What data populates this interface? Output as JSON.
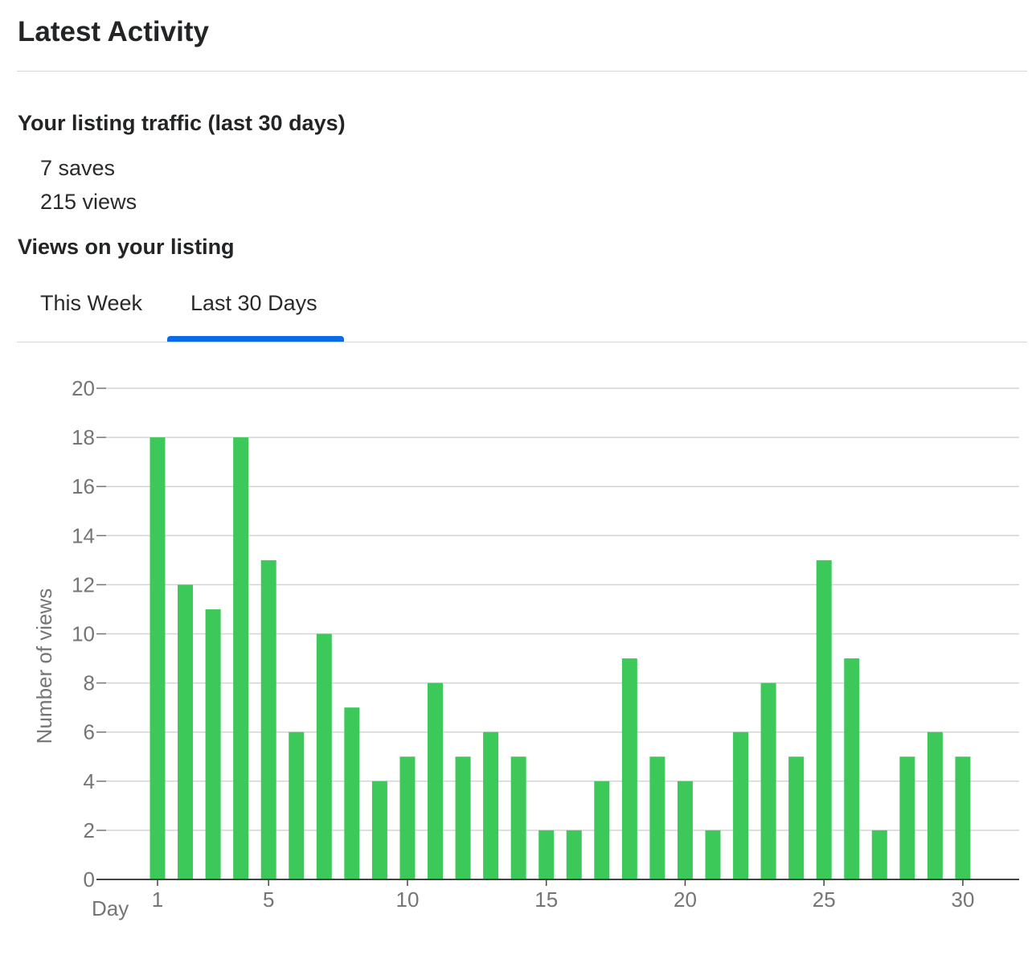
{
  "header": {
    "title": "Latest Activity"
  },
  "traffic": {
    "title": "Your listing traffic (last 30 days)",
    "saves": "7 saves",
    "views": "215 views"
  },
  "views_section": {
    "title": "Views on your listing"
  },
  "tabs": [
    {
      "label": "This Week",
      "active": false
    },
    {
      "label": "Last 30 Days",
      "active": true
    }
  ],
  "colors": {
    "bar": "#3dc95a",
    "tab_indicator": "#0a6ae8",
    "gridline": "#d4d4d4",
    "axis_text": "#757575"
  },
  "chart_data": {
    "type": "bar",
    "title": "",
    "xlabel": "Day",
    "ylabel": "Number of views",
    "x": [
      1,
      2,
      3,
      4,
      5,
      6,
      7,
      8,
      9,
      10,
      11,
      12,
      13,
      14,
      15,
      16,
      17,
      18,
      19,
      20,
      21,
      22,
      23,
      24,
      25,
      26,
      27,
      28,
      29,
      30
    ],
    "values": [
      18,
      12,
      11,
      18,
      13,
      6,
      10,
      7,
      4,
      5,
      8,
      5,
      6,
      5,
      2,
      2,
      4,
      9,
      5,
      4,
      2,
      6,
      8,
      5,
      13,
      9,
      2,
      5,
      6,
      5
    ],
    "xticks": [
      "1",
      "5",
      "10",
      "15",
      "20",
      "25",
      "30"
    ],
    "yticks": [
      "0",
      "2",
      "4",
      "6",
      "8",
      "10",
      "12",
      "14",
      "16",
      "18",
      "20"
    ],
    "ylim": [
      0,
      20
    ],
    "grid": true,
    "legend": "none"
  }
}
